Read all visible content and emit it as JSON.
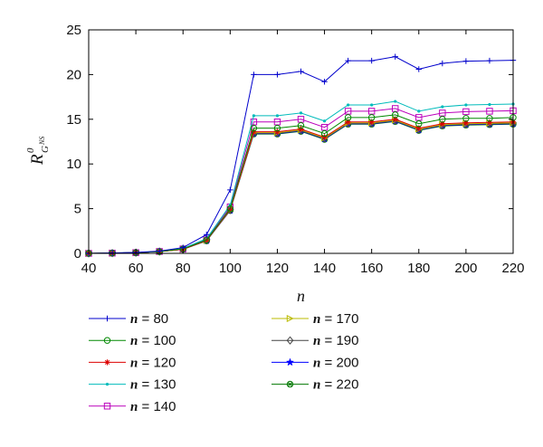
{
  "chart_data": {
    "type": "line",
    "xlabel": "n",
    "ylabel": {
      "main": "R",
      "superscript": "0",
      "subscript": "G",
      "subscript_superscript": "NS"
    },
    "xlim": [
      40,
      220
    ],
    "ylim": [
      0,
      25
    ],
    "x_ticks": [
      "40",
      "60",
      "80",
      "100",
      "120",
      "140",
      "160",
      "180",
      "200",
      "220"
    ],
    "y_ticks": [
      "0",
      "5",
      "10",
      "15",
      "20",
      "25"
    ],
    "grid": false,
    "legend_position": "bottom-left",
    "x": [
      40,
      50,
      60,
      70,
      80,
      90,
      100,
      110,
      120,
      130,
      140,
      150,
      160,
      170,
      180,
      190,
      200,
      210,
      220
    ],
    "series": [
      {
        "name": "n = 80",
        "label_var": "n",
        "label_rest": " = 80",
        "color": "#0000cc",
        "marker": "plus",
        "values": [
          0,
          0.05,
          0.1,
          0.25,
          0.65,
          2.1,
          7.1,
          20.0,
          20.0,
          20.35,
          19.2,
          21.55,
          21.55,
          22.0,
          20.6,
          21.25,
          21.5,
          21.55,
          21.6
        ]
      },
      {
        "name": "n = 100",
        "label_var": "n",
        "label_rest": " = 100",
        "color": "#008800",
        "marker": "circle",
        "values": [
          0,
          0.03,
          0.08,
          0.2,
          0.5,
          1.5,
          5.0,
          14.0,
          14.0,
          14.3,
          13.4,
          15.2,
          15.2,
          15.5,
          14.5,
          15.0,
          15.1,
          15.1,
          15.2
        ]
      },
      {
        "name": "n = 120",
        "label_var": "n",
        "label_rest": " = 120",
        "color": "#dd0000",
        "marker": "asterisk",
        "values": [
          0,
          0.03,
          0.08,
          0.2,
          0.45,
          1.45,
          4.9,
          13.6,
          13.6,
          13.9,
          13.0,
          14.7,
          14.7,
          15.0,
          14.0,
          14.5,
          14.6,
          14.65,
          14.7
        ]
      },
      {
        "name": "n = 130",
        "label_var": "n",
        "label_rest": " = 130",
        "color": "#00bbbb",
        "marker": "dot",
        "values": [
          0,
          0.04,
          0.09,
          0.22,
          0.55,
          1.65,
          5.4,
          15.4,
          15.4,
          15.7,
          14.8,
          16.6,
          16.6,
          17.0,
          15.9,
          16.4,
          16.6,
          16.65,
          16.7
        ]
      },
      {
        "name": "n = 140",
        "label_var": "n",
        "label_rest": " = 140",
        "color": "#bb00bb",
        "marker": "square",
        "values": [
          0,
          0.03,
          0.08,
          0.21,
          0.5,
          1.6,
          5.2,
          14.7,
          14.7,
          15.0,
          14.1,
          15.9,
          15.9,
          16.2,
          15.2,
          15.7,
          15.85,
          15.9,
          15.95
        ]
      },
      {
        "name": "n = 170",
        "label_var": "n",
        "label_rest": " = 170",
        "color": "#bbbb00",
        "marker": "triangle-right",
        "values": [
          0,
          0.03,
          0.08,
          0.2,
          0.45,
          1.45,
          4.85,
          13.5,
          13.5,
          13.8,
          12.9,
          14.6,
          14.6,
          14.9,
          13.9,
          14.4,
          14.5,
          14.55,
          14.6
        ]
      },
      {
        "name": "n = 190",
        "label_var": "n",
        "label_rest": " = 190",
        "color": "#444444",
        "marker": "diamond",
        "values": [
          0,
          0.03,
          0.08,
          0.2,
          0.45,
          1.45,
          4.85,
          13.45,
          13.45,
          13.75,
          12.85,
          14.55,
          14.55,
          14.85,
          13.85,
          14.35,
          14.45,
          14.5,
          14.55
        ]
      },
      {
        "name": "n = 200",
        "label_var": "n",
        "label_rest": " = 200",
        "color": "#0000ff",
        "marker": "star",
        "values": [
          0,
          0.03,
          0.08,
          0.2,
          0.45,
          1.42,
          4.8,
          13.4,
          13.4,
          13.7,
          12.8,
          14.5,
          14.5,
          14.8,
          13.8,
          14.3,
          14.4,
          14.45,
          14.5
        ]
      },
      {
        "name": "n = 220",
        "label_var": "n",
        "label_rest": " = 220",
        "color": "#007700",
        "marker": "circle-x",
        "values": [
          0,
          0.03,
          0.08,
          0.2,
          0.45,
          1.4,
          4.8,
          13.35,
          13.35,
          13.65,
          12.75,
          14.45,
          14.45,
          14.75,
          13.75,
          14.25,
          14.35,
          14.4,
          14.45
        ]
      }
    ]
  }
}
